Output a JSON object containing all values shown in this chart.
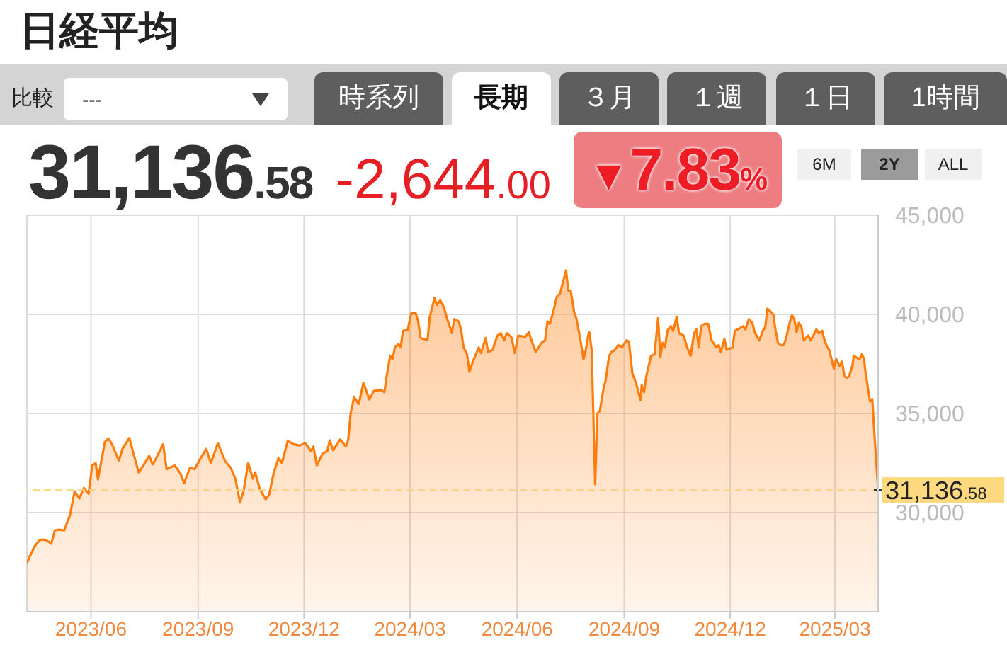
{
  "chart_data": {
    "type": "area",
    "title": "日経平均",
    "annotations": [
      "比較",
      "---",
      "時系列",
      "長期",
      "３月",
      "１週",
      "１日",
      "1時間",
      "31,136.58",
      "-2,644.00",
      "▼7.83%",
      "6M",
      "2Y",
      "ALL"
    ],
    "x": [
      "2023-04-07",
      "2023-04-10",
      "2023-04-14",
      "2023-04-18",
      "2023-04-22",
      "2023-04-26",
      "2023-04-28",
      "2023-05-01",
      "2023-05-05",
      "2023-05-09",
      "2023-05-14",
      "2023-05-18",
      "2023-05-22",
      "2023-05-26",
      "2023-05-30",
      "2023-06-02",
      "2023-06-05",
      "2023-06-07",
      "2023-06-13",
      "2023-06-16",
      "2023-06-19",
      "2023-06-25",
      "2023-06-28",
      "2023-07-04",
      "2023-07-08",
      "2023-07-12",
      "2023-07-16",
      "2023-07-21",
      "2023-07-24",
      "2023-07-27",
      "2023-08-02",
      "2023-08-05",
      "2023-08-12",
      "2023-08-17",
      "2023-08-20",
      "2023-08-25",
      "2023-08-29",
      "2023-09-02",
      "2023-09-08",
      "2023-09-12",
      "2023-09-18",
      "2023-09-24",
      "2023-09-29",
      "2023-10-03",
      "2023-10-07",
      "2023-10-10",
      "2023-10-14",
      "2023-10-18",
      "2023-10-20",
      "2023-10-24",
      "2023-10-29",
      "2023-11-01",
      "2023-11-05",
      "2023-11-09",
      "2023-11-12",
      "2023-11-17",
      "2023-11-22",
      "2023-11-27",
      "2023-12-02",
      "2023-12-07",
      "2023-12-09",
      "2023-12-12",
      "2023-12-17",
      "2023-12-21",
      "2023-12-23",
      "2023-12-26",
      "2024-01-01",
      "2024-01-06",
      "2024-01-08",
      "2024-01-10",
      "2024-01-13",
      "2024-01-17",
      "2024-01-21",
      "2024-01-26",
      "2024-01-30",
      "2024-02-05",
      "2024-02-08",
      "2024-02-10",
      "2024-02-13",
      "2024-02-15",
      "2024-02-17",
      "2024-02-20",
      "2024-02-22",
      "2024-02-24",
      "2024-02-28",
      "2024-03-02",
      "2024-03-06",
      "2024-03-08",
      "2024-03-10",
      "2024-03-16",
      "2024-03-18",
      "2024-03-22",
      "2024-03-24",
      "2024-03-27",
      "2024-03-30",
      "2024-04-02",
      "2024-04-06",
      "2024-04-08",
      "2024-04-12",
      "2024-04-14",
      "2024-04-16",
      "2024-04-19",
      "2024-04-21",
      "2024-04-24",
      "2024-04-29",
      "2024-05-01",
      "2024-05-05",
      "2024-05-07",
      "2024-05-11",
      "2024-05-15",
      "2024-05-18",
      "2024-05-21",
      "2024-05-23",
      "2024-05-27",
      "2024-05-30",
      "2024-06-02",
      "2024-06-08",
      "2024-06-11",
      "2024-06-14",
      "2024-06-17",
      "2024-06-22",
      "2024-06-25",
      "2024-06-27",
      "2024-06-29",
      "2024-07-02",
      "2024-07-05",
      "2024-07-08",
      "2024-07-10",
      "2024-07-13",
      "2024-07-15",
      "2024-07-17",
      "2024-07-20",
      "2024-07-22",
      "2024-07-25",
      "2024-07-28",
      "2024-07-30",
      "2024-08-01",
      "2024-08-02",
      "2024-08-04",
      "2024-08-05",
      "2024-08-07",
      "2024-08-09",
      "2024-08-11",
      "2024-08-14",
      "2024-08-16",
      "2024-08-19",
      "2024-08-21",
      "2024-08-24",
      "2024-08-27",
      "2024-08-30",
      "2024-09-03",
      "2024-09-05",
      "2024-09-08",
      "2024-09-11",
      "2024-09-15",
      "2024-09-16",
      "2024-09-18",
      "2024-09-20",
      "2024-09-24",
      "2024-09-27",
      "2024-09-30",
      "2024-10-02",
      "2024-10-04",
      "2024-10-06",
      "2024-10-08",
      "2024-10-11",
      "2024-10-13",
      "2024-10-16",
      "2024-10-18",
      "2024-10-22",
      "2024-10-25",
      "2024-10-28",
      "2024-10-31",
      "2024-11-02",
      "2024-11-04",
      "2024-11-06",
      "2024-11-09",
      "2024-11-12",
      "2024-11-15",
      "2024-11-19",
      "2024-11-21",
      "2024-11-23",
      "2024-11-26",
      "2024-11-28",
      "2024-12-03",
      "2024-12-05",
      "2024-12-09",
      "2024-12-12",
      "2024-12-14",
      "2024-12-17",
      "2024-12-20",
      "2024-12-22",
      "2024-12-26",
      "2024-12-29",
      "2024-12-31",
      "2025-01-02",
      "2025-01-05",
      "2025-01-07",
      "2025-01-09",
      "2025-01-11",
      "2025-01-13",
      "2025-01-16",
      "2025-01-18",
      "2025-01-21",
      "2025-01-23",
      "2025-01-25",
      "2025-01-27",
      "2025-01-29",
      "2025-01-31",
      "2025-02-02",
      "2025-02-06",
      "2025-02-08",
      "2025-02-11",
      "2025-02-13",
      "2025-02-15",
      "2025-02-18",
      "2025-02-20",
      "2025-02-22",
      "2025-02-24",
      "2025-02-26",
      "2025-02-28",
      "2025-03-02",
      "2025-03-05",
      "2025-03-07",
      "2025-03-09",
      "2025-03-11",
      "2025-03-13",
      "2025-03-16",
      "2025-03-17",
      "2025-03-20",
      "2025-03-22",
      "2025-03-24",
      "2025-03-26",
      "2025-03-27",
      "2025-03-31",
      "2025-04-01",
      "2025-04-02",
      "2025-04-03",
      "2025-04-04",
      "2025-04-07"
    ],
    "values": [
      27450,
      27860,
      28330,
      28620,
      28640,
      28520,
      28430,
      29100,
      29140,
      29100,
      29880,
      31070,
      30710,
      31240,
      30950,
      32380,
      32500,
      31670,
      33570,
      33740,
      33450,
      32620,
      33210,
      33760,
      32860,
      32020,
      32380,
      32860,
      32430,
      32740,
      33450,
      32190,
      32380,
      31950,
      31480,
      32260,
      32190,
      32620,
      33210,
      32500,
      33500,
      32620,
      32260,
      31710,
      30520,
      31070,
      32500,
      31710,
      32020,
      31190,
      30670,
      30900,
      32020,
      32740,
      32500,
      33620,
      33450,
      33380,
      33500,
      33100,
      33330,
      32380,
      32980,
      33100,
      33640,
      33140,
      33690,
      33330,
      33690,
      35000,
      35830,
      35480,
      36550,
      35710,
      36140,
      36190,
      36070,
      36900,
      37910,
      37740,
      38330,
      38500,
      38330,
      39170,
      39210,
      40050,
      40050,
      39640,
      38810,
      38690,
      39880,
      40830,
      40480,
      40710,
      40360,
      39760,
      39050,
      39760,
      39640,
      39170,
      38330,
      37980,
      37100,
      37620,
      38330,
      38050,
      38810,
      38100,
      38210,
      38930,
      39050,
      38690,
      39050,
      38860,
      38050,
      38930,
      38860,
      39100,
      38570,
      38100,
      38570,
      38690,
      39640,
      39520,
      40120,
      40880,
      41070,
      41550,
      42210,
      41190,
      41190,
      40120,
      39760,
      38810,
      37740,
      38210,
      38930,
      39100,
      38210,
      35950,
      31430,
      35000,
      35120,
      36190,
      36670,
      37910,
      38100,
      38210,
      38450,
      38330,
      38690,
      38620,
      37020,
      36550,
      35670,
      36430,
      36070,
      36900,
      37910,
      37980,
      39810,
      37860,
      38570,
      38330,
      39170,
      39400,
      39170,
      39880,
      39050,
      38930,
      38330,
      37910,
      39050,
      39240,
      38330,
      39400,
      39520,
      39520,
      38690,
      38330,
      38450,
      38100,
      38760,
      38210,
      38330,
      39170,
      39290,
      39400,
      39240,
      39760,
      39570,
      39100,
      38690,
      39170,
      39330,
      40290,
      40120,
      40000,
      39170,
      38570,
      38450,
      38450,
      38810,
      39570,
      39950,
      39760,
      39100,
      39570,
      39400,
      38690,
      38930,
      38690,
      39000,
      39240,
      39050,
      39170,
      38690,
      38380,
      38210,
      37740,
      37260,
      37740,
      37380,
      37620,
      36900,
      36790,
      36860,
      37430,
      37910,
      37810,
      37740,
      37980,
      37740,
      37140,
      35620,
      35620,
      35730,
      34740,
      33780,
      31136.58
    ],
    "color": "#ff7d0d",
    "xlim": [
      "2023-04-07",
      "2025-04-07"
    ],
    "xticks": [
      {
        "value": "2023-06",
        "label": "2023/06"
      },
      {
        "value": "2023-09",
        "label": "2023/09"
      },
      {
        "value": "2023-12",
        "label": "2023/12"
      },
      {
        "value": "2024-03",
        "label": "2024/03"
      },
      {
        "value": "2024-06",
        "label": "2024/06"
      },
      {
        "value": "2024-09",
        "label": "2024/09"
      },
      {
        "value": "2024-12",
        "label": "2024/12"
      },
      {
        "value": "2025-03",
        "label": "2025/03"
      }
    ],
    "ylim": [
      25000,
      45000
    ],
    "yticks": [
      {
        "value": 30000,
        "label": "30,000"
      },
      {
        "value": 35000,
        "label": "35,000"
      },
      {
        "value": 40000,
        "label": "40,000"
      },
      {
        "value": 45000,
        "label": "45,000"
      }
    ],
    "grid": true,
    "ref_lines": [
      {
        "axis": "y",
        "value": 31136.58,
        "label": "31,136.58",
        "color": "#ffd27a",
        "line_style": "dashed"
      }
    ]
  }
}
